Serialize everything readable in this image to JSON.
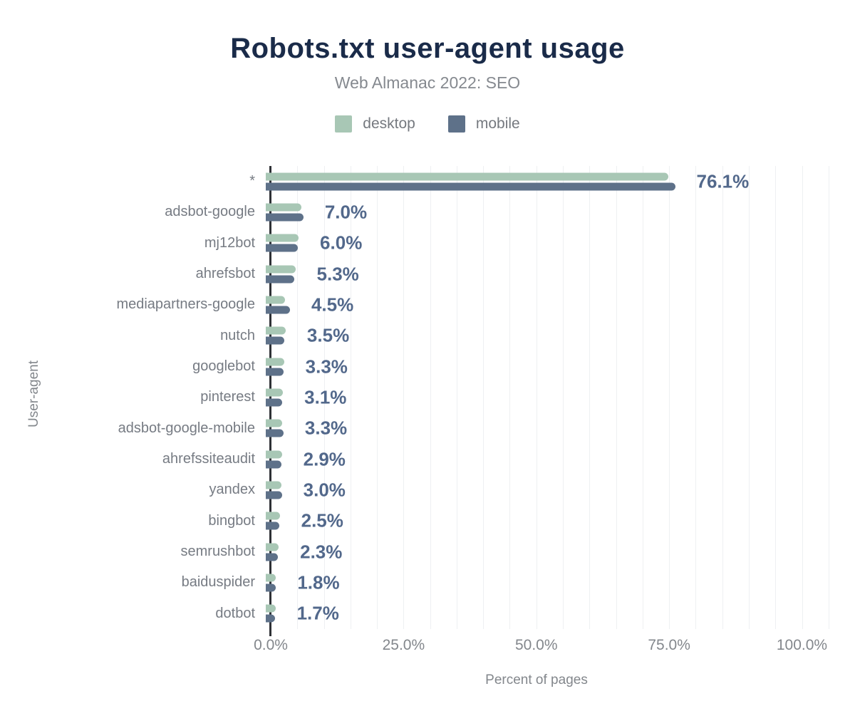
{
  "header": {
    "title": "Robots.txt user-agent usage",
    "subtitle": "Web Almanac 2022: SEO"
  },
  "legend": {
    "items": [
      {
        "label": "desktop",
        "color": "#a8c7b5"
      },
      {
        "label": "mobile",
        "color": "#5e7189"
      }
    ]
  },
  "axes": {
    "y_title": "User-agent",
    "x_title": "Percent of pages",
    "x_tick_labels": [
      "0.0%",
      "25.0%",
      "50.0%",
      "75.0%",
      "100.0%"
    ],
    "x_tick_values": [
      0,
      25,
      50,
      75,
      100
    ]
  },
  "colors": {
    "title": "#1a2b49",
    "desktop_bar": "#a8c7b5",
    "mobile_bar": "#5e7189",
    "value_label": "#52688b",
    "grid": "#eef0f2",
    "axis_line": "#2f3136",
    "muted_text": "#83878c"
  },
  "chart_data": {
    "type": "bar",
    "orientation": "horizontal",
    "title": "Robots.txt user-agent usage",
    "subtitle": "Web Almanac 2022: SEO",
    "xlabel": "Percent of pages",
    "ylabel": "User-agent",
    "xlim": [
      0,
      105.7
    ],
    "x_tick_values": [
      0,
      25,
      50,
      75,
      100
    ],
    "grid_step": 5,
    "grid": "minor vertical lines every 5%",
    "legend_position": "top",
    "categories": [
      "*",
      "adsbot-google",
      "mj12bot",
      "ahrefsbot",
      "mediapartners-google",
      "nutch",
      "googlebot",
      "pinterest",
      "adsbot-google-mobile",
      "ahrefssiteaudit",
      "yandex",
      "bingbot",
      "semrushbot",
      "baiduspider",
      "dotbot"
    ],
    "series": [
      {
        "name": "desktop",
        "color": "#a8c7b5",
        "values": [
          74.9,
          6.6,
          6.1,
          5.5,
          3.6,
          3.7,
          3.4,
          3.2,
          3.0,
          3.0,
          2.9,
          2.6,
          2.4,
          1.9,
          1.8
        ]
      },
      {
        "name": "mobile",
        "color": "#5e7189",
        "values": [
          76.1,
          7.0,
          6.0,
          5.3,
          4.5,
          3.5,
          3.3,
          3.1,
          3.3,
          2.9,
          3.0,
          2.5,
          2.3,
          1.8,
          1.7
        ]
      }
    ],
    "data_labels": [
      "76.1%",
      "7.0%",
      "6.0%",
      "5.3%",
      "4.5%",
      "3.5%",
      "3.3%",
      "3.1%",
      "3.3%",
      "2.9%",
      "3.0%",
      "2.5%",
      "2.3%",
      "1.8%",
      "1.7%"
    ],
    "data_label_series": "mobile"
  }
}
